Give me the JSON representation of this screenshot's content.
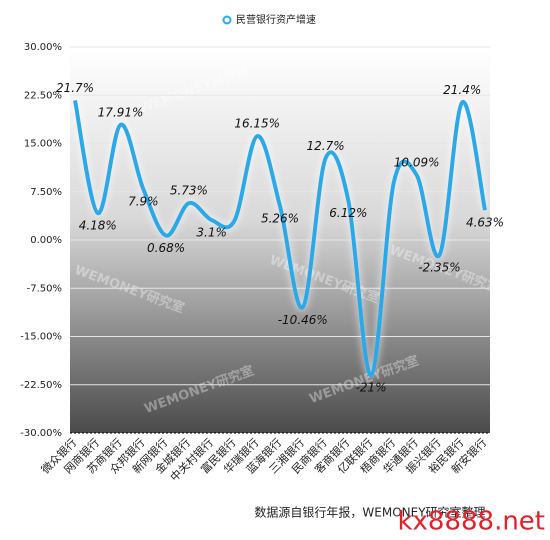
{
  "chart_data": {
    "type": "line",
    "legend": "民营银行资产增速",
    "categories": [
      "微众银行",
      "网商银行",
      "苏商银行",
      "众邦银行",
      "新网银行",
      "金城银行",
      "中关村银行",
      "富民银行",
      "华瑞银行",
      "蓝海银行",
      "三湘银行",
      "民商银行",
      "客商银行",
      "亿联银行",
      "梧商银行",
      "华通银行",
      "振兴银行",
      "裕民银行",
      "新安银行"
    ],
    "series": [
      {
        "name": "民营银行资产增速",
        "color": "#2aa9e8",
        "values": [
          21.7,
          4.18,
          17.91,
          7.9,
          0.68,
          5.73,
          3.1,
          3,
          16.15,
          5.26,
          -10.46,
          12.7,
          6.12,
          -21,
          9,
          10.09,
          -2.35,
          21.4,
          4.63
        ],
        "value_labels": [
          "21.7%",
          "4.18%",
          "17.91%",
          "7.9%",
          "0.68%",
          "5.73%",
          "3.1%",
          null,
          "16.15%",
          "5.26%",
          "-10.46%",
          "12.7%",
          "6.12%",
          "-21%",
          null,
          "10.09%",
          "-2.35%",
          "21.4%",
          "4.63%"
        ]
      }
    ],
    "ylim": [
      -30,
      30
    ],
    "yticks": [
      {
        "value": -30,
        "label": "-30.00%"
      },
      {
        "value": -22.5,
        "label": "-22.50%"
      },
      {
        "value": -15,
        "label": "-15.00%"
      },
      {
        "value": -7.5,
        "label": "-7.50%"
      },
      {
        "value": 0,
        "label": "0.00%"
      },
      {
        "value": 7.5,
        "label": "7.50%"
      },
      {
        "value": 15,
        "label": "15.00%"
      },
      {
        "value": 22.5,
        "label": "22.50%"
      },
      {
        "value": 30,
        "label": "30.00%"
      }
    ],
    "grid": true,
    "source": "数据源自银行年报，WEMONEY研究室整理",
    "watermark": "WEMONEY研究室",
    "site_watermark": "kx8888.net"
  }
}
